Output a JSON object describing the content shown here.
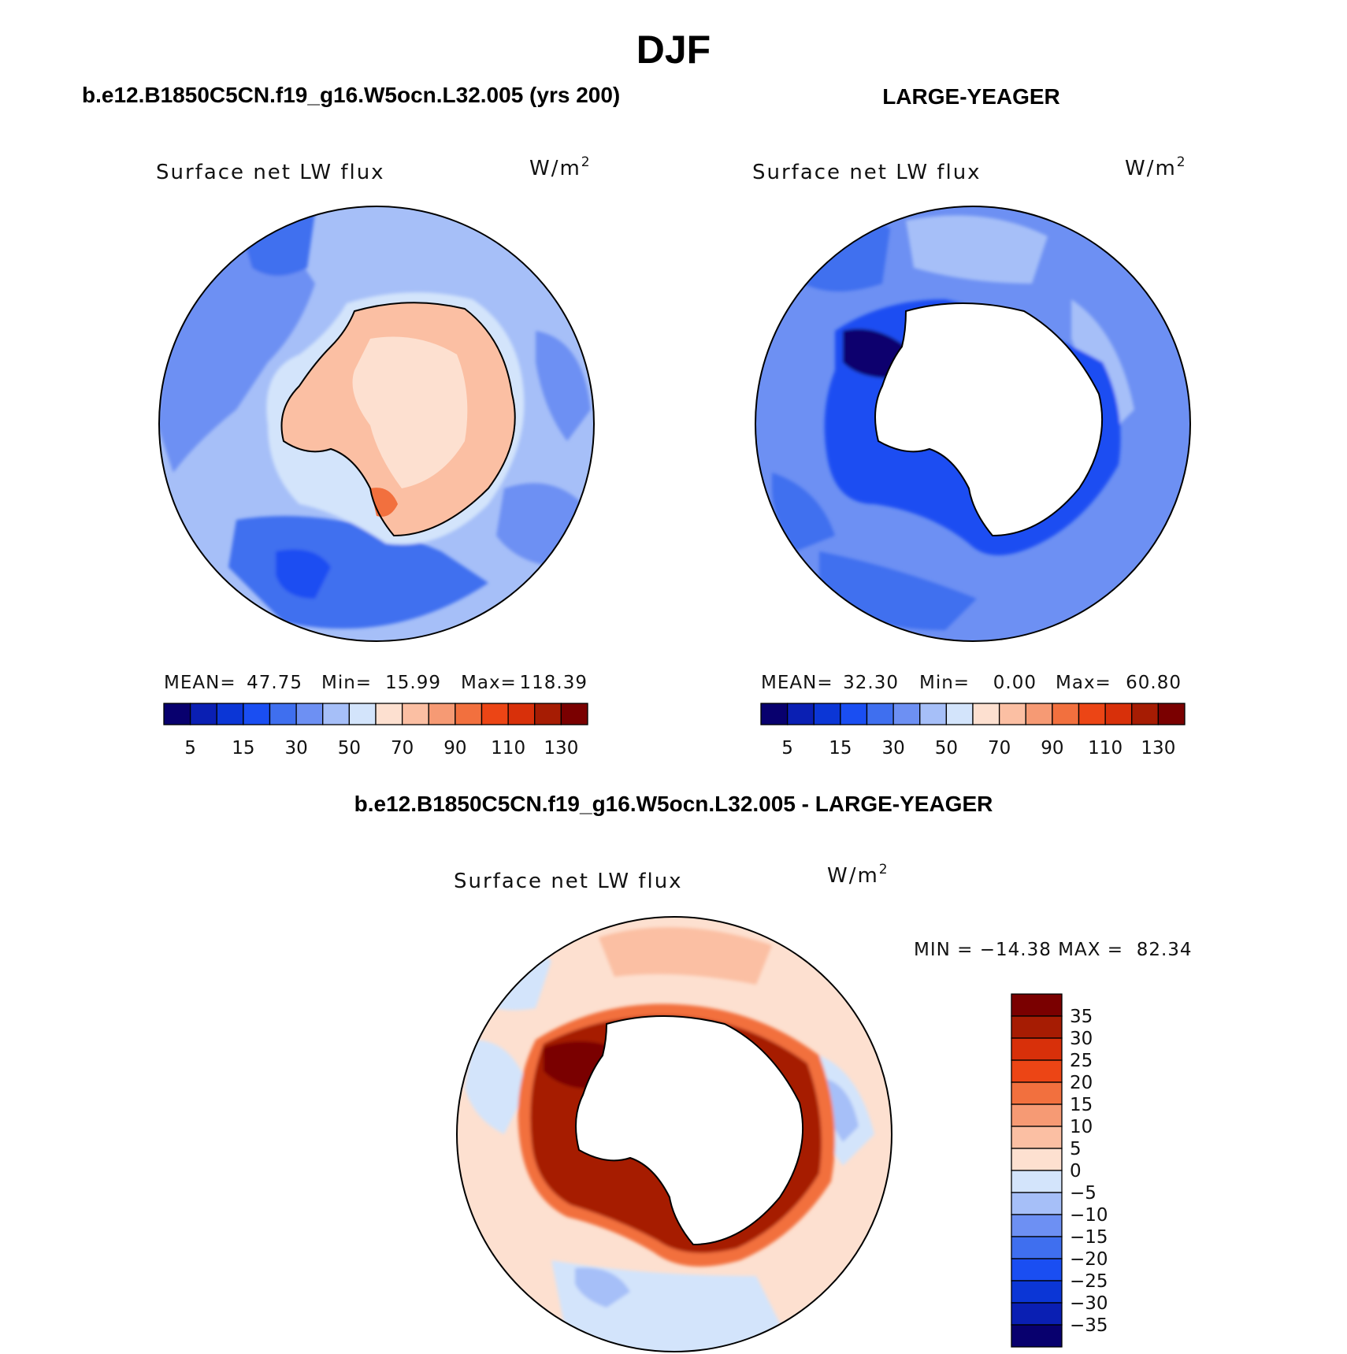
{
  "page": {
    "title": "DJF"
  },
  "panels": [
    {
      "id": "left",
      "case_title": "b.e12.B1850C5CN.f19_g16.W5ocn.L32.005 (yrs 200)",
      "plot_title": "Surface net LW flux",
      "units_base": "W/m",
      "units_exp": "2",
      "stats": {
        "mean_label": "MEAN=",
        "mean": "47.75",
        "min_label": "Min=",
        "min": "15.99",
        "max_label": "Max=",
        "max": "118.39"
      },
      "colorbar_labels": [
        "5",
        "15",
        "30",
        "50",
        "70",
        "90",
        "110",
        "130"
      ]
    },
    {
      "id": "right",
      "case_title": "LARGE-YEAGER",
      "plot_title": "Surface net LW flux",
      "units_base": "W/m",
      "units_exp": "2",
      "stats": {
        "mean_label": "MEAN=",
        "mean": "32.30",
        "min_label": "Min=",
        "min": "0.00",
        "max_label": "Max=",
        "max": "60.80"
      },
      "colorbar_labels": [
        "5",
        "15",
        "30",
        "50",
        "70",
        "90",
        "110",
        "130"
      ]
    },
    {
      "id": "diff",
      "case_title": "b.e12.B1850C5CN.f19_g16.W5ocn.L32.005 - LARGE-YEAGER",
      "plot_title": "Surface net LW flux",
      "units_base": "W/m",
      "units_exp": "2",
      "minmax_text": "MIN = −14.38 MAX =  82.34",
      "colorbar_labels": [
        "35",
        "30",
        "25",
        "20",
        "15",
        "10",
        "5",
        "0",
        "−5",
        "−10",
        "−15",
        "−20",
        "−25",
        "−30",
        "−35"
      ]
    }
  ],
  "colors": {
    "abs_scale": [
      "#08006e",
      "#0a1fb3",
      "#0b36d6",
      "#1a4ef2",
      "#3f6fef",
      "#6d90f3",
      "#a6bff8",
      "#d3e4fb",
      "#fde0d0",
      "#fbbfa3",
      "#f69a74",
      "#f2703e",
      "#ec4515",
      "#d8300a",
      "#a61c03",
      "#7a0000"
    ],
    "diff_scale": [
      "#7a0000",
      "#a61c03",
      "#d8300a",
      "#ec4515",
      "#f2703e",
      "#f69a74",
      "#fbbfa3",
      "#fde0d0",
      "#d3e4fb",
      "#a6bff8",
      "#6d90f3",
      "#3f6fef",
      "#1a4ef2",
      "#0b36d6",
      "#0a1fb3",
      "#08006e"
    ]
  },
  "chart_data": {
    "type": "heatmap",
    "projection": "south polar stereographic",
    "season": "DJF",
    "variable": "Surface net LW flux",
    "units": "W/m2",
    "abs_contour_levels": [
      5,
      10,
      15,
      20,
      30,
      40,
      50,
      60,
      70,
      80,
      90,
      100,
      110,
      120,
      130
    ],
    "diff_contour_levels": [
      -35,
      -30,
      -25,
      -20,
      -15,
      -10,
      -5,
      0,
      5,
      10,
      15,
      20,
      25,
      30,
      35
    ],
    "fields": [
      {
        "name": "model",
        "mean": 47.75,
        "min": 15.99,
        "max": 118.39
      },
      {
        "name": "LARGE-YEAGER",
        "mean": 32.3,
        "min": 0.0,
        "max": 60.8
      },
      {
        "name": "difference",
        "min": -14.38,
        "max": 82.34
      }
    ]
  }
}
